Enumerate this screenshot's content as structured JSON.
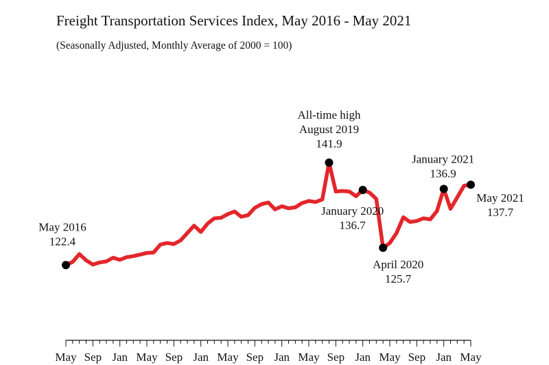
{
  "chart_data": {
    "type": "line",
    "title": "Freight Transportation Services Index, May 2016 - May 2021",
    "subtitle": "(Seasonally Adjusted, Monthly Average of 2000 = 100)",
    "xlabel": "",
    "ylabel": "",
    "ylim": [
      112,
      150
    ],
    "grid": false,
    "line_color": "#e3262b",
    "marker_color": "#000000",
    "x_tick_labels": [
      "May",
      "Sep",
      "Jan",
      "May",
      "Sep",
      "Jan",
      "May",
      "Sep",
      "Jan",
      "May",
      "Sep",
      "Jan",
      "May",
      "Sep",
      "Jan",
      "May"
    ],
    "series": [
      {
        "start": "2016-05",
        "values": [
          122.4,
          123.0,
          124.5,
          123.3,
          122.5,
          122.9,
          123.1,
          123.8,
          123.4,
          123.9,
          124.1,
          124.4,
          124.7,
          124.8,
          126.3,
          126.6,
          126.4,
          127.1,
          128.5,
          129.9,
          128.7,
          130.3,
          131.3,
          131.4,
          132.1,
          132.6,
          131.6,
          131.9,
          133.3,
          134.0,
          134.3,
          133.0,
          133.6,
          133.2,
          133.4,
          134.2,
          134.6,
          134.4,
          134.9,
          141.9,
          136.4,
          136.5,
          136.4,
          135.5,
          136.7,
          136.2,
          135.0,
          125.7,
          126.6,
          128.5,
          131.5,
          130.6,
          130.8,
          131.3,
          131.1,
          132.7,
          136.9,
          133.1,
          135.3,
          137.5,
          137.7
        ]
      }
    ],
    "annotations": [
      {
        "date": "2016-05",
        "lines": [
          "May 2016",
          "122.4"
        ]
      },
      {
        "date": "2019-08",
        "lines": [
          "All-time high",
          "August 2019",
          "141.9"
        ]
      },
      {
        "date": "2020-01",
        "lines": [
          "January 2020",
          "136.7"
        ]
      },
      {
        "date": "2020-04",
        "lines": [
          "April 2020",
          "125.7"
        ]
      },
      {
        "date": "2021-01",
        "lines": [
          "January 2021",
          "136.9"
        ]
      },
      {
        "date": "2021-05",
        "lines": [
          "May 2021",
          "137.7"
        ]
      }
    ]
  }
}
